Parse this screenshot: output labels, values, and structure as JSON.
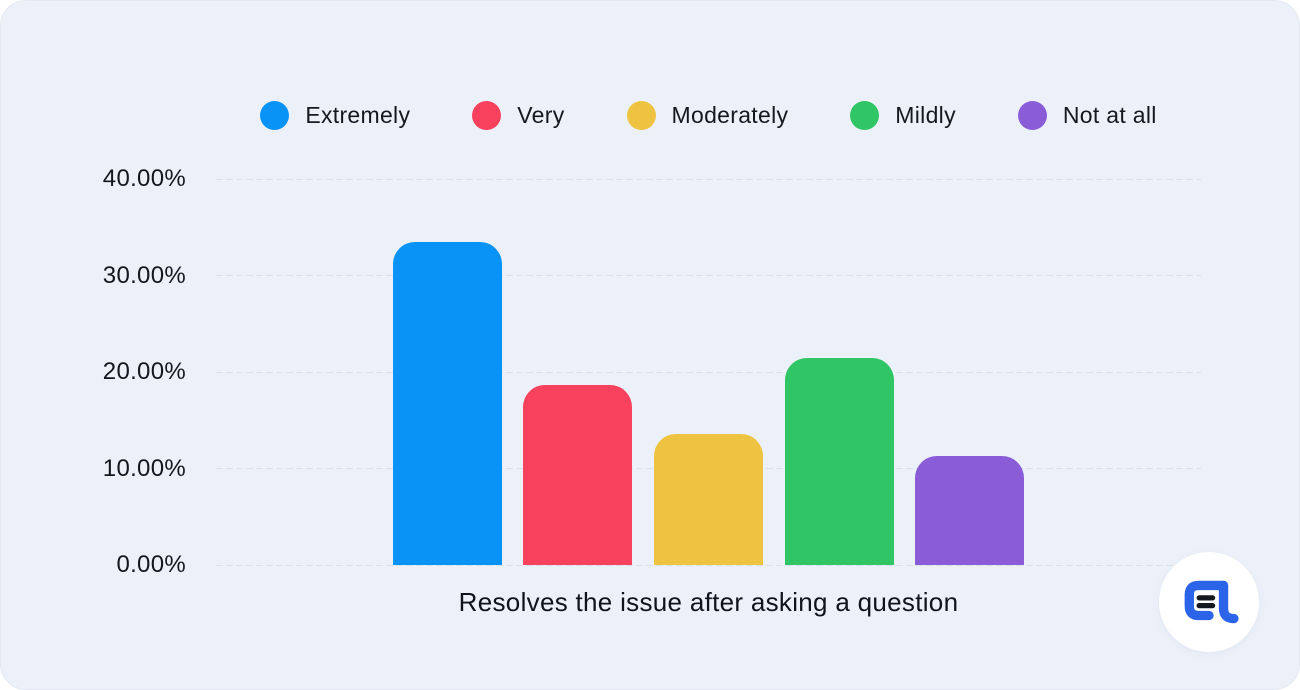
{
  "page": {
    "outer_background": "#ffffff",
    "card_background": "#ecf1f9",
    "gridline_color": "#d7e2ee",
    "text_color": "#15191f"
  },
  "chart_data": {
    "type": "bar",
    "categories": [
      "Extremely",
      "Very",
      "Moderately",
      "Mildly",
      "Not at all"
    ],
    "values": [
      33.5,
      18.7,
      13.6,
      21.5,
      11.3
    ],
    "colors": [
      "#0a93f6",
      "#f8415c",
      "#efc342",
      "#30c565",
      "#8a5cd7"
    ],
    "title": "",
    "xlabel": "Resolves the issue after asking a question",
    "ylabel": "",
    "ylim": [
      0,
      40
    ],
    "yticks": [
      {
        "label": "40.00%",
        "value": 40
      },
      {
        "label": "30.00%",
        "value": 30
      },
      {
        "label": "20.00%",
        "value": 20
      },
      {
        "label": "10.00%",
        "value": 10
      },
      {
        "label": "0.00%",
        "value": 0
      }
    ],
    "grid": true,
    "legend_position": "top",
    "value_format": "percent"
  },
  "logo": {
    "background": "#ffffff",
    "glyph_color": "#2b63e9",
    "lines_color": "#15181e"
  }
}
